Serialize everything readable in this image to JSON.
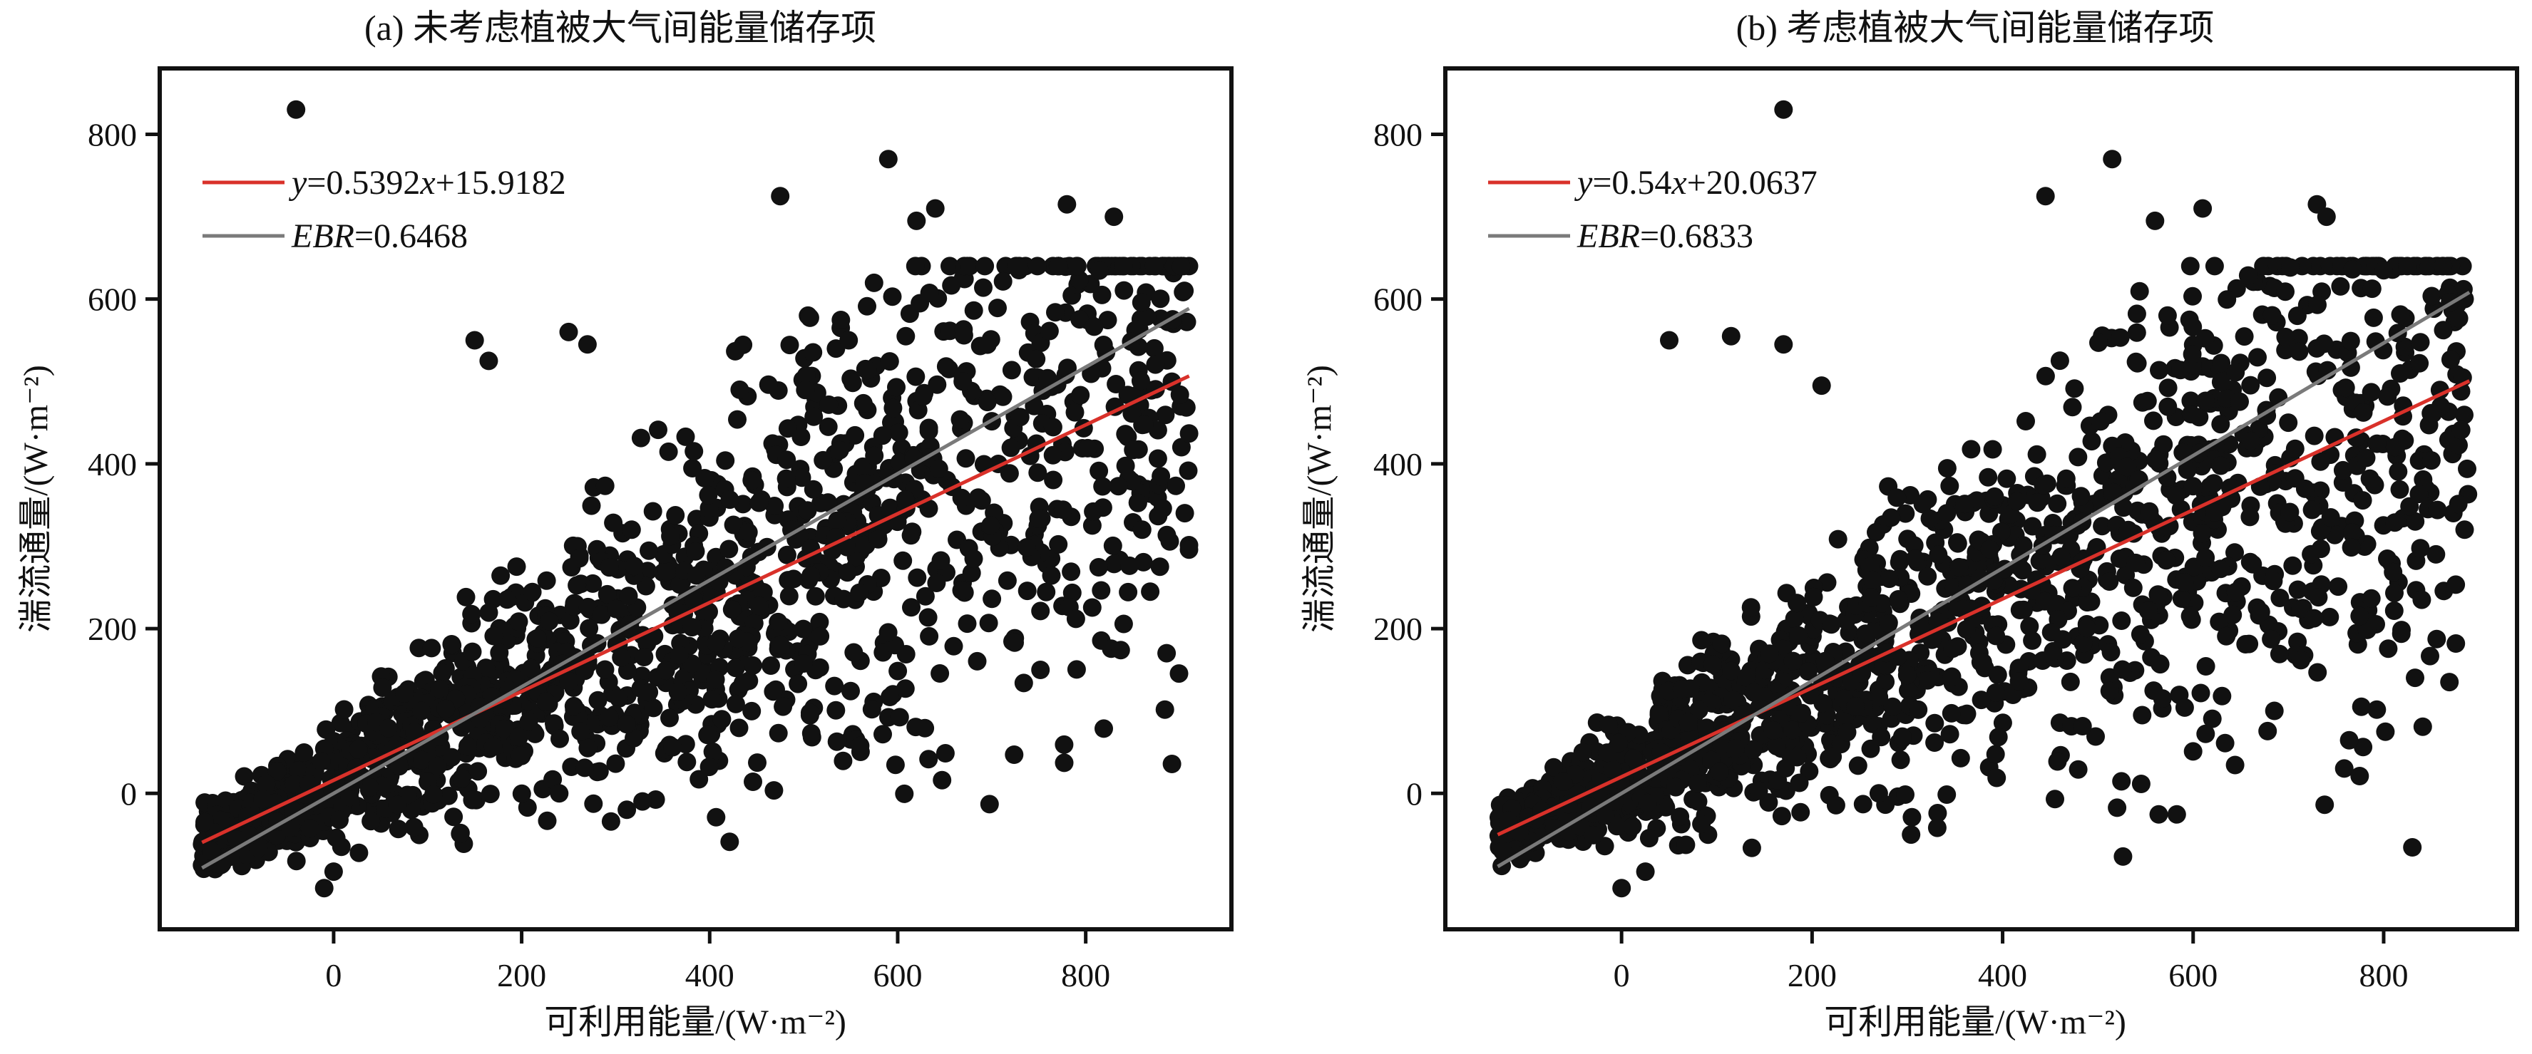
{
  "figure": {
    "colors": {
      "points": "#111111",
      "fit_line": "#d9312a",
      "ebr_line": "#7a7a7a",
      "frame": "#111111"
    }
  },
  "chart_data": [
    {
      "type": "scatter",
      "title": "(a) 未考虑植被大气间能量储存项",
      "xlabel": "可利用能量/(W·m⁻²)",
      "ylabel": "湍流通量/(W·m⁻²)",
      "xlim": [
        -185,
        955
      ],
      "ylim": [
        -165,
        880
      ],
      "xticks": [
        0,
        200,
        400,
        600,
        800
      ],
      "yticks": [
        0,
        200,
        400,
        600,
        800
      ],
      "grid": false,
      "legend_position": "top-left",
      "series": [
        {
          "name": "y=0.5392x+15.9182",
          "kind": "line",
          "slope": 0.5392,
          "intercept": 15.9182,
          "x_range": [
            -140,
            910
          ]
        },
        {
          "name": "EBR=0.6468",
          "kind": "line",
          "slope": 0.6468,
          "intercept": 0,
          "x_range": [
            -140,
            910
          ]
        }
      ],
      "point_cloud": {
        "count": 1500,
        "x_range": [
          -140,
          910
        ],
        "y_range": [
          -120,
          835
        ],
        "seed": 11
      },
      "notable_points": [
        {
          "x": -40,
          "y": 830
        },
        {
          "x": 590,
          "y": 770
        },
        {
          "x": 475,
          "y": 725
        },
        {
          "x": 640,
          "y": 710
        },
        {
          "x": 620,
          "y": 695
        },
        {
          "x": 780,
          "y": 715
        },
        {
          "x": 830,
          "y": 700
        },
        {
          "x": 905,
          "y": 610
        },
        {
          "x": 150,
          "y": 550
        },
        {
          "x": 165,
          "y": 525
        },
        {
          "x": 250,
          "y": 560
        },
        {
          "x": 270,
          "y": 545
        },
        {
          "x": 240,
          "y": 0
        },
        {
          "x": -10,
          "y": -115
        },
        {
          "x": 0,
          "y": -95
        },
        {
          "x": -130,
          "y": -70
        },
        {
          "x": 860,
          "y": 320
        },
        {
          "x": 880,
          "y": 385
        }
      ]
    },
    {
      "type": "scatter",
      "title": "(b) 考虑植被大气间能量储存项",
      "xlabel": "可利用能量/(W·m⁻²)",
      "ylabel": "湍流通量/(W·m⁻²)",
      "xlim": [
        -185,
        940
      ],
      "ylim": [
        -165,
        880
      ],
      "xticks": [
        0,
        200,
        400,
        600,
        800
      ],
      "yticks": [
        0,
        200,
        400,
        600,
        800
      ],
      "grid": false,
      "legend_position": "top-left",
      "series": [
        {
          "name": "y=0.54x+20.0637",
          "kind": "line",
          "slope": 0.54,
          "intercept": 20.0637,
          "x_range": [
            -130,
            890
          ]
        },
        {
          "name": "EBR=0.6833",
          "kind": "line",
          "slope": 0.6833,
          "intercept": 0,
          "x_range": [
            -130,
            890
          ]
        }
      ],
      "point_cloud": {
        "count": 1500,
        "x_range": [
          -130,
          890
        ],
        "y_range": [
          -120,
          835
        ],
        "seed": 29
      },
      "notable_points": [
        {
          "x": 170,
          "y": 830
        },
        {
          "x": 515,
          "y": 770
        },
        {
          "x": 445,
          "y": 725
        },
        {
          "x": 610,
          "y": 710
        },
        {
          "x": 560,
          "y": 695
        },
        {
          "x": 730,
          "y": 715
        },
        {
          "x": 740,
          "y": 700
        },
        {
          "x": 800,
          "y": 635
        },
        {
          "x": 50,
          "y": 550
        },
        {
          "x": 115,
          "y": 555
        },
        {
          "x": 170,
          "y": 545
        },
        {
          "x": 210,
          "y": 495
        },
        {
          "x": 270,
          "y": 0
        },
        {
          "x": 0,
          "y": -115
        },
        {
          "x": 25,
          "y": -95
        },
        {
          "x": -125,
          "y": -70
        },
        {
          "x": 885,
          "y": 320
        },
        {
          "x": 840,
          "y": 235
        }
      ]
    }
  ]
}
